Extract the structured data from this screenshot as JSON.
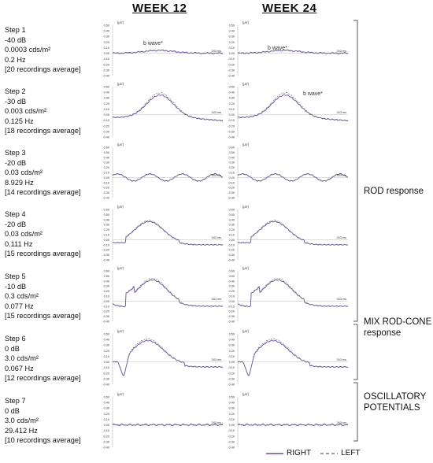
{
  "headers": {
    "week12": "WEEK 12",
    "week24": "WEEK 24"
  },
  "steps": [
    {
      "lines": [
        "Step 1",
        "-40 dB",
        "0.0003 cds/m²",
        "0.2 Hz",
        "[20 recordings average]"
      ]
    },
    {
      "lines": [
        "Step 2",
        "-30 dB",
        "0.003 cds/m²",
        "0.125 Hz",
        "[18 recordings average]"
      ]
    },
    {
      "lines": [
        "Step 3",
        "-20 dB",
        "0.03 cds/m²",
        "8.929 Hz",
        "[14 recordings average]"
      ]
    },
    {
      "lines": [
        "Step 4",
        "-20 dB",
        "0.03 cds/m²",
        "0.111 Hz",
        "[15 recordings average]"
      ]
    },
    {
      "lines": [
        "Step 5",
        "-10 dB",
        "0.3 cds/m²",
        "0.077 Hz",
        "[15 recordings average]"
      ]
    },
    {
      "lines": [
        "Step 6",
        "0 dB",
        "3.0 cds/m²",
        "0.067 Hz",
        "[12 recordings average]"
      ]
    },
    {
      "lines": [
        "Step 7",
        "0 dB",
        "3.0 cds/m²",
        "29.412 Hz",
        "[10 recordings average]"
      ]
    }
  ],
  "panel_axis": {
    "unit": "(µV)",
    "ticks": [
      "0.50",
      "0.40",
      "0.30",
      "0.20",
      "0.10",
      "0.00",
      "-0.10",
      "-0.20",
      "-0.30",
      "-0.40"
    ],
    "tick_values": [
      0.5,
      0.4,
      0.3,
      0.2,
      0.1,
      0.0,
      -0.1,
      -0.2,
      -0.3,
      -0.4
    ],
    "alt_top_ticks": [
      "0.60",
      "0.50",
      "0.40",
      "0.30",
      "0.20",
      "0.10",
      "0.00",
      "-0.10",
      "-0.20",
      "-0.30",
      "-0.40"
    ],
    "time_label": "343 ms"
  },
  "annotations": {
    "b_wave_step1_w12": "b wave*",
    "b_wave_step1_w24": "b wave*",
    "b_wave_step2_w24": "b wave*"
  },
  "groups": [
    {
      "label_lines": [
        "ROD response"
      ],
      "steps": [
        1,
        2,
        3,
        4,
        5
      ]
    },
    {
      "label_lines": [
        "MIX ROD-CONE",
        "response"
      ],
      "steps": [
        6
      ]
    },
    {
      "label_lines": [
        "OSCILLATORY",
        "POTENTIALS"
      ],
      "steps": [
        7
      ]
    }
  ],
  "legend": {
    "right": "RIGHT",
    "left": "LEFT"
  },
  "colors": {
    "right": "#6b4fa0",
    "left": "#777777",
    "axis": "#999999"
  }
}
